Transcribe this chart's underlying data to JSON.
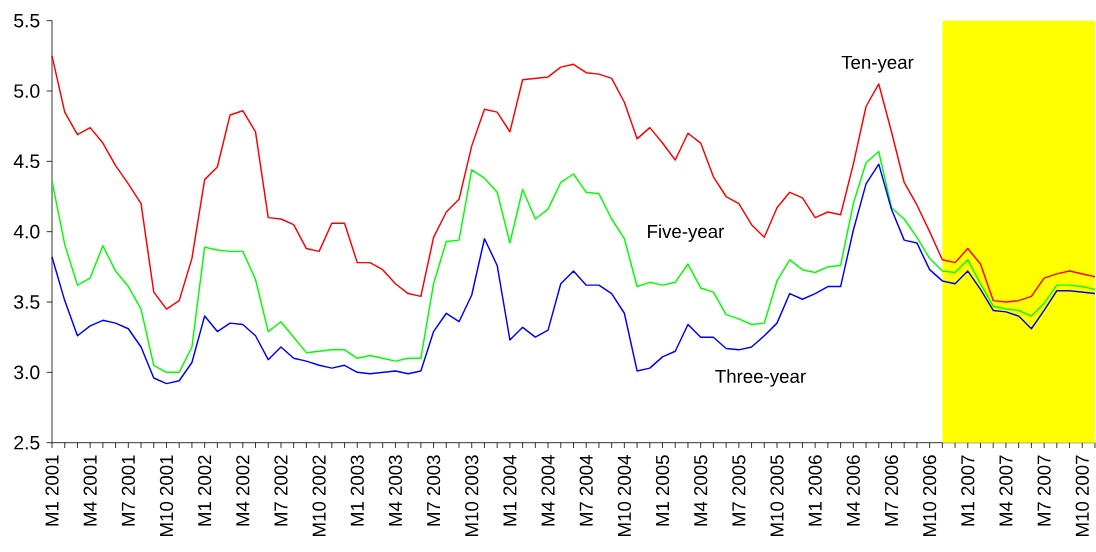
{
  "chart_data": {
    "type": "line",
    "x": [
      "2001-01",
      "2001-02",
      "2001-03",
      "2001-04",
      "2001-05",
      "2001-06",
      "2001-07",
      "2001-08",
      "2001-09",
      "2001-10",
      "2001-11",
      "2001-12",
      "2002-01",
      "2002-02",
      "2002-03",
      "2002-04",
      "2002-05",
      "2002-06",
      "2002-07",
      "2002-08",
      "2002-09",
      "2002-10",
      "2002-11",
      "2002-12",
      "2003-01",
      "2003-02",
      "2003-03",
      "2003-04",
      "2003-05",
      "2003-06",
      "2003-07",
      "2003-08",
      "2003-09",
      "2003-10",
      "2003-11",
      "2003-12",
      "2004-01",
      "2004-02",
      "2004-03",
      "2004-04",
      "2004-05",
      "2004-06",
      "2004-07",
      "2004-08",
      "2004-09",
      "2004-10",
      "2004-11",
      "2004-12",
      "2005-01",
      "2005-02",
      "2005-03",
      "2005-04",
      "2005-05",
      "2005-06",
      "2005-07",
      "2005-08",
      "2005-09",
      "2005-10",
      "2005-11",
      "2005-12",
      "2006-01",
      "2006-02",
      "2006-03",
      "2006-04",
      "2006-05",
      "2006-06",
      "2006-07",
      "2006-08",
      "2006-09",
      "2006-10",
      "2006-11",
      "2006-12",
      "2007-01",
      "2007-02",
      "2007-03",
      "2007-04",
      "2007-05",
      "2007-06",
      "2007-07",
      "2007-08",
      "2007-09",
      "2007-10",
      "2007-11"
    ],
    "series": [
      {
        "name": "Ten-year",
        "color": "#ff0000",
        "values": [
          5.25,
          4.85,
          4.69,
          4.74,
          4.63,
          4.47,
          4.34,
          4.2,
          3.57,
          3.45,
          3.51,
          3.81,
          4.37,
          4.46,
          4.83,
          4.86,
          4.71,
          4.1,
          4.09,
          4.05,
          3.88,
          3.86,
          4.06,
          4.06,
          3.78,
          3.78,
          3.73,
          3.63,
          3.56,
          3.54,
          3.96,
          4.14,
          4.23,
          4.61,
          4.87,
          4.85,
          4.71,
          5.08,
          5.09,
          5.1,
          5.17,
          5.19,
          5.13,
          5.12,
          5.09,
          4.92,
          4.66,
          4.74,
          4.63,
          4.51,
          4.7,
          4.63,
          4.39,
          4.25,
          4.2,
          4.05,
          3.96,
          4.17,
          4.28,
          4.24,
          4.1,
          4.14,
          4.12,
          4.48,
          4.89,
          5.05,
          4.71,
          4.35,
          4.19,
          4.0,
          3.8,
          3.78,
          3.88,
          3.77,
          3.51,
          3.5,
          3.51,
          3.54,
          3.67,
          3.7,
          3.72,
          3.7,
          3.68
        ]
      },
      {
        "name": "Five-year",
        "color": "#00ff00",
        "values": [
          4.36,
          3.91,
          3.62,
          3.67,
          3.9,
          3.72,
          3.61,
          3.45,
          3.05,
          3.0,
          3.0,
          3.18,
          3.89,
          3.87,
          3.86,
          3.86,
          3.66,
          3.29,
          3.36,
          3.25,
          3.14,
          3.15,
          3.16,
          3.16,
          3.1,
          3.12,
          3.1,
          3.08,
          3.1,
          3.1,
          3.63,
          3.93,
          3.94,
          4.44,
          4.38,
          4.28,
          3.92,
          4.3,
          4.09,
          4.16,
          4.35,
          4.41,
          4.28,
          4.27,
          4.09,
          3.95,
          3.61,
          3.64,
          3.62,
          3.64,
          3.77,
          3.6,
          3.57,
          3.41,
          3.38,
          3.34,
          3.35,
          3.65,
          3.8,
          3.73,
          3.71,
          3.75,
          3.76,
          4.2,
          4.49,
          4.57,
          4.17,
          4.09,
          3.96,
          3.81,
          3.72,
          3.71,
          3.8,
          3.63,
          3.47,
          3.45,
          3.44,
          3.4,
          3.49,
          3.62,
          3.62,
          3.61,
          3.59
        ]
      },
      {
        "name": "Three-year",
        "color": "#0000ff",
        "values": [
          3.82,
          3.51,
          3.26,
          3.33,
          3.37,
          3.35,
          3.31,
          3.18,
          2.96,
          2.92,
          2.94,
          3.07,
          3.4,
          3.29,
          3.35,
          3.34,
          3.26,
          3.09,
          3.18,
          3.1,
          3.08,
          3.05,
          3.03,
          3.05,
          3.0,
          2.99,
          3.0,
          3.01,
          2.99,
          3.01,
          3.29,
          3.42,
          3.36,
          3.55,
          3.95,
          3.76,
          3.23,
          3.32,
          3.25,
          3.3,
          3.63,
          3.72,
          3.62,
          3.62,
          3.56,
          3.42,
          3.01,
          3.03,
          3.11,
          3.15,
          3.34,
          3.25,
          3.25,
          3.17,
          3.16,
          3.18,
          3.26,
          3.35,
          3.56,
          3.52,
          3.56,
          3.61,
          3.61,
          4.01,
          4.34,
          4.48,
          4.16,
          3.94,
          3.92,
          3.73,
          3.65,
          3.63,
          3.72,
          3.59,
          3.44,
          3.43,
          3.4,
          3.31,
          3.44,
          3.58,
          3.58,
          3.57,
          3.56
        ]
      }
    ],
    "xlim": [
      "2001-01",
      "2007-11"
    ],
    "xticks": [
      {
        "value": "2001-01",
        "label": "M1 2001"
      },
      {
        "value": "2001-02",
        "label": null
      },
      {
        "value": "2001-03",
        "label": null
      },
      {
        "value": "2001-04",
        "label": "M4 2001"
      },
      {
        "value": "2001-05",
        "label": null
      },
      {
        "value": "2001-06",
        "label": null
      },
      {
        "value": "2001-07",
        "label": "M7 2001"
      },
      {
        "value": "2001-08",
        "label": null
      },
      {
        "value": "2001-09",
        "label": null
      },
      {
        "value": "2001-10",
        "label": "M10 2001"
      },
      {
        "value": "2001-11",
        "label": null
      },
      {
        "value": "2001-12",
        "label": null
      },
      {
        "value": "2002-01",
        "label": "M1 2002"
      },
      {
        "value": "2002-02",
        "label": null
      },
      {
        "value": "2002-03",
        "label": null
      },
      {
        "value": "2002-04",
        "label": "M4 2002"
      },
      {
        "value": "2002-05",
        "label": null
      },
      {
        "value": "2002-06",
        "label": null
      },
      {
        "value": "2002-07",
        "label": "M7 2002"
      },
      {
        "value": "2002-08",
        "label": null
      },
      {
        "value": "2002-09",
        "label": null
      },
      {
        "value": "2002-10",
        "label": "M10 2002"
      },
      {
        "value": "2002-11",
        "label": null
      },
      {
        "value": "2002-12",
        "label": null
      },
      {
        "value": "2003-01",
        "label": "M1 2003"
      },
      {
        "value": "2003-02",
        "label": null
      },
      {
        "value": "2003-03",
        "label": null
      },
      {
        "value": "2003-04",
        "label": "M4 2003"
      },
      {
        "value": "2003-05",
        "label": null
      },
      {
        "value": "2003-06",
        "label": null
      },
      {
        "value": "2003-07",
        "label": "M7 2003"
      },
      {
        "value": "2003-08",
        "label": null
      },
      {
        "value": "2003-09",
        "label": null
      },
      {
        "value": "2003-10",
        "label": "M10 2003"
      },
      {
        "value": "2003-11",
        "label": null
      },
      {
        "value": "2003-12",
        "label": null
      },
      {
        "value": "2004-01",
        "label": "M1 2004"
      },
      {
        "value": "2004-02",
        "label": null
      },
      {
        "value": "2004-03",
        "label": null
      },
      {
        "value": "2004-04",
        "label": "M4 2004"
      },
      {
        "value": "2004-05",
        "label": null
      },
      {
        "value": "2004-06",
        "label": null
      },
      {
        "value": "2004-07",
        "label": "M7 2004"
      },
      {
        "value": "2004-08",
        "label": null
      },
      {
        "value": "2004-09",
        "label": null
      },
      {
        "value": "2004-10",
        "label": "M10 2004"
      },
      {
        "value": "2004-11",
        "label": null
      },
      {
        "value": "2004-12",
        "label": null
      },
      {
        "value": "2005-01",
        "label": "M1 2005"
      },
      {
        "value": "2005-02",
        "label": null
      },
      {
        "value": "2005-03",
        "label": null
      },
      {
        "value": "2005-04",
        "label": "M4 2005"
      },
      {
        "value": "2005-05",
        "label": null
      },
      {
        "value": "2005-06",
        "label": null
      },
      {
        "value": "2005-07",
        "label": "M7 2005"
      },
      {
        "value": "2005-08",
        "label": null
      },
      {
        "value": "2005-09",
        "label": null
      },
      {
        "value": "2005-10",
        "label": "M10 2005"
      },
      {
        "value": "2005-11",
        "label": null
      },
      {
        "value": "2005-12",
        "label": null
      },
      {
        "value": "2006-01",
        "label": "M1 2006"
      },
      {
        "value": "2006-02",
        "label": null
      },
      {
        "value": "2006-03",
        "label": null
      },
      {
        "value": "2006-04",
        "label": "M4 2006"
      },
      {
        "value": "2006-05",
        "label": null
      },
      {
        "value": "2006-06",
        "label": null
      },
      {
        "value": "2006-07",
        "label": "M7 2006"
      },
      {
        "value": "2006-08",
        "label": null
      },
      {
        "value": "2006-09",
        "label": null
      },
      {
        "value": "2006-10",
        "label": "M10 2006"
      },
      {
        "value": "2006-11",
        "label": null
      },
      {
        "value": "2006-12",
        "label": null
      },
      {
        "value": "2007-01",
        "label": "M1 2007"
      },
      {
        "value": "2007-02",
        "label": null
      },
      {
        "value": "2007-03",
        "label": null
      },
      {
        "value": "2007-04",
        "label": "M4 2007"
      },
      {
        "value": "2007-05",
        "label": null
      },
      {
        "value": "2007-06",
        "label": null
      },
      {
        "value": "2007-07",
        "label": "M7 2007"
      },
      {
        "value": "2007-08",
        "label": null
      },
      {
        "value": "2007-09",
        "label": null
      },
      {
        "value": "2007-10",
        "label": "M10 2007"
      },
      {
        "value": "2007-11",
        "label": null
      }
    ],
    "ylim": [
      2.5,
      5.5
    ],
    "yticks": [
      {
        "value": 2.5,
        "label": "2.5"
      },
      {
        "value": 3.0,
        "label": "3.0"
      },
      {
        "value": 3.5,
        "label": "3.5"
      },
      {
        "value": 4.0,
        "label": "4.0"
      },
      {
        "value": 4.5,
        "label": "4.5"
      },
      {
        "value": 5.0,
        "label": "5.0"
      },
      {
        "value": 5.5,
        "label": "5.5"
      }
    ],
    "bands": [
      {
        "axis": "x",
        "from": "2006-11",
        "to": "2007-11",
        "color": "#ffff00"
      }
    ]
  }
}
